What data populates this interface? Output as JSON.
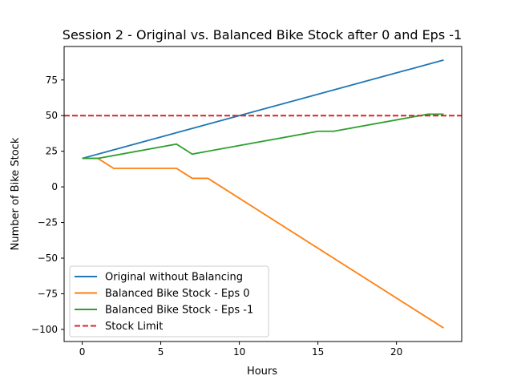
{
  "chart_data": {
    "type": "line",
    "title": "Session 2 - Original vs. Balanced Bike Stock after 0 and Eps -1",
    "xlabel": "Hours",
    "ylabel": "Number of Bike Stock",
    "xlim": [
      -1.15,
      24.15
    ],
    "ylim": [
      -108.5,
      98.5
    ],
    "x_ticks": [
      0,
      5,
      10,
      15,
      20
    ],
    "x_tick_labels": [
      "0",
      "5",
      "10",
      "15",
      "20"
    ],
    "y_ticks": [
      -100,
      -75,
      -50,
      -25,
      0,
      25,
      50,
      75
    ],
    "y_tick_labels": [
      "−100",
      "−75",
      "−50",
      "−25",
      "0",
      "25",
      "50",
      "75"
    ],
    "grid": false,
    "legend_position": "lower-left",
    "series": [
      {
        "name": "Original without Balancing",
        "color": "#1f77b4",
        "style": "solid",
        "x": [
          0,
          23
        ],
        "y": [
          20,
          89
        ]
      },
      {
        "name": "Balanced Bike Stock - Eps 0",
        "color": "#ff7f0e",
        "style": "solid",
        "x": [
          0,
          1,
          2,
          3,
          4,
          5,
          6,
          7,
          8,
          23
        ],
        "y": [
          20,
          20,
          13,
          13,
          13,
          13,
          13,
          6,
          6,
          -99
        ]
      },
      {
        "name": "Balanced Bike Stock - Eps -1",
        "color": "#2ca02c",
        "style": "solid",
        "x": [
          0,
          1,
          6,
          7,
          15,
          16,
          22,
          23
        ],
        "y": [
          20,
          20,
          30,
          23,
          39,
          39,
          51,
          51
        ]
      },
      {
        "name": "Stock Limit",
        "color": "#d62728",
        "style": "dashed",
        "y_constant": 50
      }
    ]
  }
}
